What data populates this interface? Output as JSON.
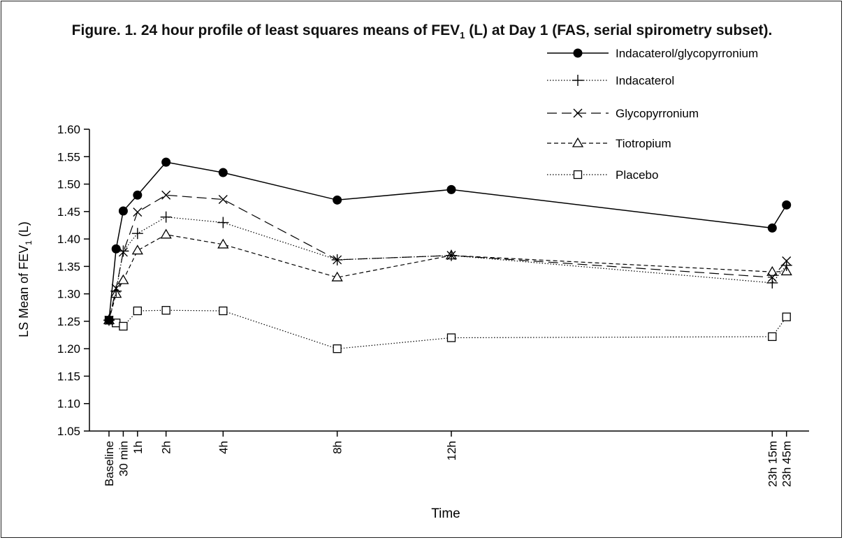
{
  "chart_data": {
    "type": "line",
    "title_main": "Figure. 1. 24 hour profile of least squares means of FEV",
    "title_sub": "1",
    "title_end": " (L) at Day 1 (FAS, serial spirometry subset).",
    "ylabel_main": "LS Mean of FEV",
    "ylabel_sub": "1",
    "ylabel_end": " (L)",
    "xlabel": "Time",
    "ylim": [
      1.05,
      1.6
    ],
    "yticks": [
      "1.05",
      "1.10",
      "1.15",
      "1.20",
      "1.25",
      "1.30",
      "1.35",
      "1.40",
      "1.45",
      "1.50",
      "1.55",
      "1.60"
    ],
    "x_hours": [
      0,
      0.5,
      1,
      2,
      4,
      8,
      12,
      23.25,
      23.75
    ],
    "xtick_labels": [
      "Baseline",
      "30 min",
      "1h",
      "2h",
      "4h",
      "8h",
      "12h",
      "23h 15m",
      "23h 45m"
    ],
    "legend_position": "top-right",
    "series": [
      {
        "name": "Indacaterol/glycopyrronium",
        "marker": "filled-circle",
        "dash": "solid",
        "x": [
          0,
          0.25,
          0.5,
          1,
          2,
          4,
          8,
          12,
          23.25,
          23.75
        ],
        "y": [
          1.252,
          1.382,
          1.451,
          1.48,
          1.54,
          1.521,
          1.471,
          1.49,
          1.42,
          1.462
        ]
      },
      {
        "name": "Indacaterol",
        "marker": "plus",
        "dash": "dotted",
        "x": [
          0,
          0.25,
          0.5,
          1,
          2,
          4,
          8,
          12,
          23.25,
          23.75
        ],
        "y": [
          1.252,
          1.305,
          1.378,
          1.41,
          1.44,
          1.43,
          1.362,
          1.37,
          1.32,
          1.352
        ]
      },
      {
        "name": "Glycopyrronium",
        "marker": "x",
        "dash": "longdash",
        "x": [
          0,
          0.25,
          0.5,
          1,
          2,
          4,
          8,
          12,
          23.25,
          23.75
        ],
        "y": [
          1.252,
          1.31,
          1.376,
          1.449,
          1.48,
          1.472,
          1.362,
          1.37,
          1.33,
          1.36
        ]
      },
      {
        "name": "Tiotropium",
        "marker": "open-triangle",
        "dash": "shortdash",
        "x": [
          0,
          0.25,
          0.5,
          1,
          2,
          4,
          8,
          12,
          23.25,
          23.75
        ],
        "y": [
          1.252,
          1.3,
          1.325,
          1.379,
          1.408,
          1.39,
          1.33,
          1.37,
          1.34,
          1.341
        ]
      },
      {
        "name": "Placebo",
        "marker": "open-square",
        "dash": "dotted",
        "x": [
          0,
          0.25,
          0.5,
          1,
          2,
          4,
          8,
          12,
          23.25,
          23.75
        ],
        "y": [
          1.252,
          1.247,
          1.241,
          1.269,
          1.27,
          1.269,
          1.2,
          1.22,
          1.222,
          1.258
        ]
      }
    ]
  }
}
